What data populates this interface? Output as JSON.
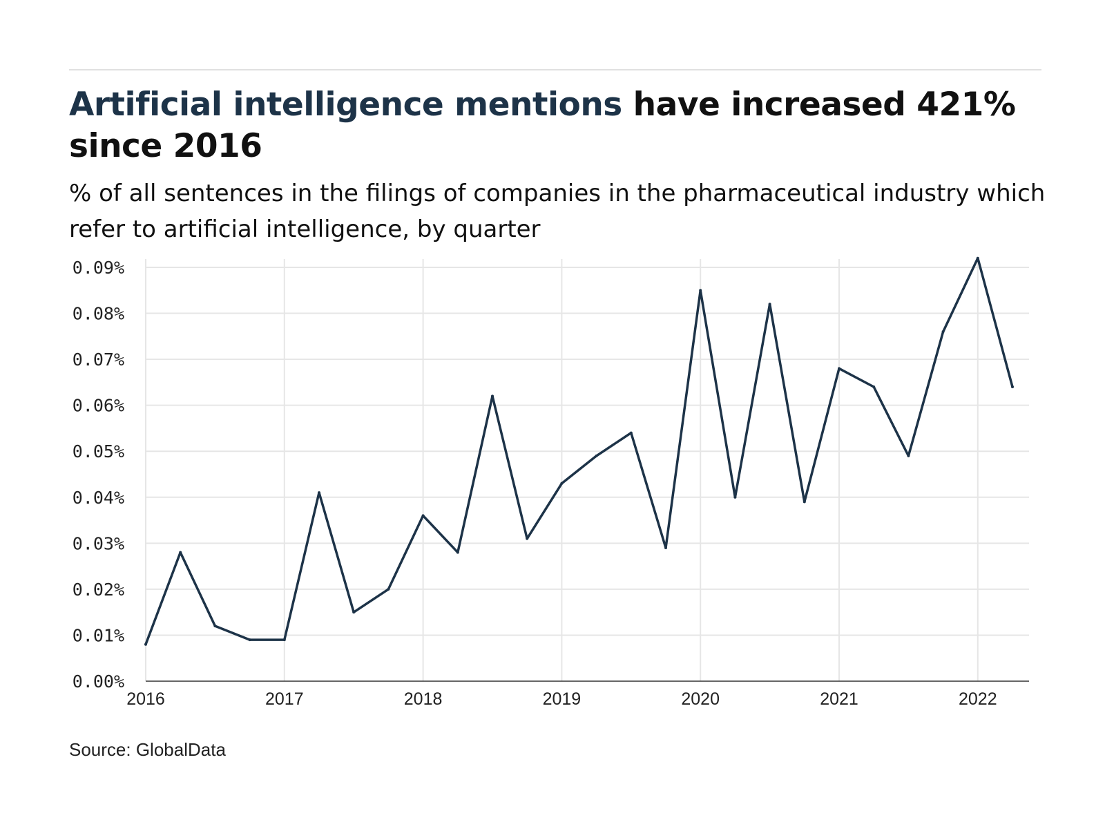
{
  "header": {
    "title_highlight": "Artificial intelligence mentions",
    "title_rest": " have increased 421% since 2016",
    "subtitle": "% of all sentences in the filings of companies in the pharmaceutical industry which refer to artificial intelligence, by quarter"
  },
  "footer": {
    "source": "Source: GlobalData"
  },
  "colors": {
    "line": "#1d3348",
    "title_highlight": "#1d3348",
    "grid": "#e6e6e6",
    "axis": "#333333"
  },
  "chart_data": {
    "type": "line",
    "title": "",
    "xlabel": "",
    "ylabel": "",
    "grid": true,
    "legend": "none",
    "xlim": [
      2016.0,
      2022.25
    ],
    "ylim": [
      0.0,
      0.09
    ],
    "xticks": [
      2016,
      2017,
      2018,
      2019,
      2020,
      2021,
      2022
    ],
    "xtick_labels": [
      "2016",
      "2017",
      "2018",
      "2019",
      "2020",
      "2021",
      "2022"
    ],
    "yticks": [
      0.0,
      0.01,
      0.02,
      0.03,
      0.04,
      0.05,
      0.06,
      0.07,
      0.08,
      0.09
    ],
    "ytick_labels": [
      "0.00%",
      "0.01%",
      "0.02%",
      "0.03%",
      "0.04%",
      "0.05%",
      "0.06%",
      "0.07%",
      "0.08%",
      "0.09%"
    ],
    "series": [
      {
        "x": [
          2016.0,
          2016.25,
          2016.5,
          2016.75,
          2017.0,
          2017.25,
          2017.5,
          2017.75,
          2018.0,
          2018.25,
          2018.5,
          2018.75,
          2019.0,
          2019.25,
          2019.5,
          2019.75,
          2020.0,
          2020.25,
          2020.5,
          2020.75,
          2021.0,
          2021.25,
          2021.5,
          2021.75,
          2022.0,
          2022.25
        ],
        "values": [
          0.008,
          0.028,
          0.012,
          0.009,
          0.009,
          0.041,
          0.015,
          0.02,
          0.036,
          0.028,
          0.062,
          0.031,
          0.043,
          0.049,
          0.054,
          0.029,
          0.085,
          0.04,
          0.082,
          0.039,
          0.068,
          0.064,
          0.049,
          0.076,
          0.092,
          0.064
        ]
      }
    ]
  }
}
